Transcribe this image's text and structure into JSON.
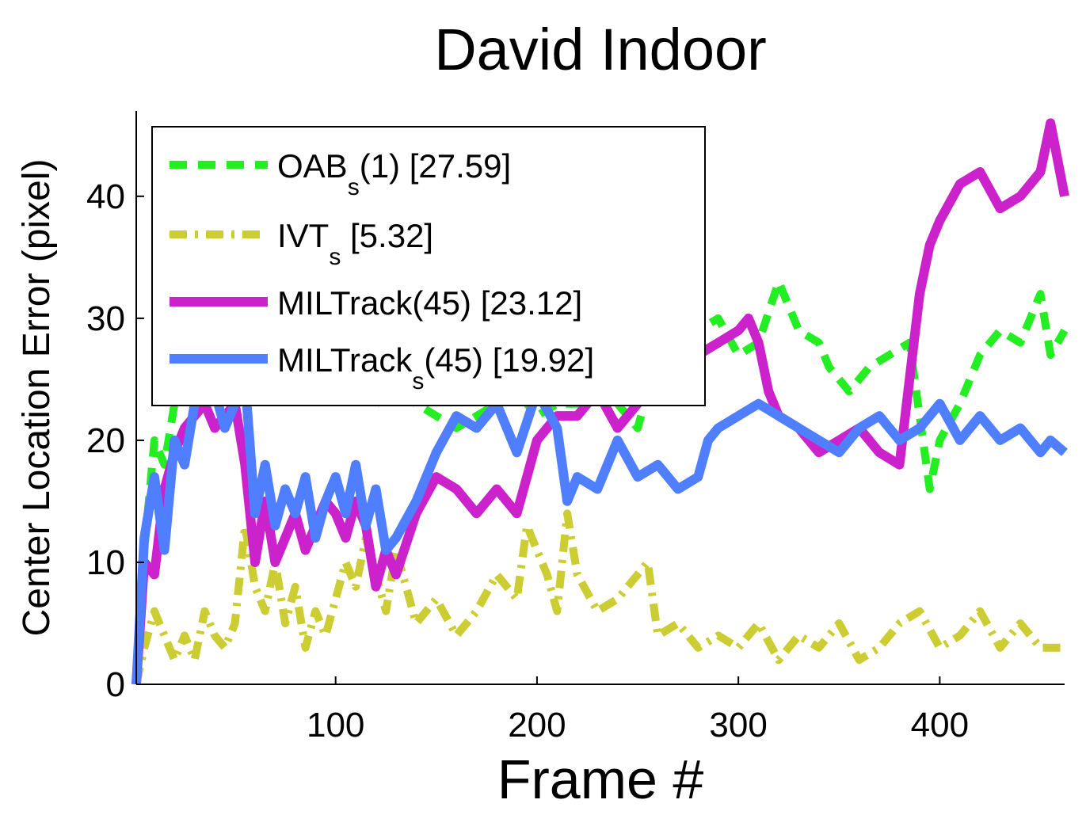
{
  "chart_data": {
    "type": "line",
    "title": "David Indoor",
    "xlabel": "Frame #",
    "ylabel": "Center Location Error (pixel)",
    "xlim": [
      1,
      462
    ],
    "ylim": [
      0,
      47
    ],
    "xticks": [
      100,
      200,
      300,
      400
    ],
    "yticks": [
      0,
      10,
      20,
      30,
      40
    ],
    "grid": false,
    "legend_position": "top-left",
    "series": [
      {
        "name": "OAB(1) [27.59]",
        "label_main": "OAB",
        "label_sub": "s",
        "label_rest": "(1) [27.59]",
        "color": "#22ee22",
        "style": "dashed",
        "x": [
          1,
          5,
          10,
          15,
          20,
          25,
          30,
          35,
          40,
          45,
          50,
          55,
          60,
          65,
          70,
          75,
          80,
          85,
          90,
          95,
          100,
          110,
          120,
          130,
          140,
          150,
          160,
          170,
          180,
          190,
          200,
          210,
          220,
          230,
          240,
          250,
          260,
          270,
          280,
          290,
          300,
          310,
          320,
          330,
          340,
          345,
          355,
          365,
          375,
          385,
          395,
          400,
          410,
          420,
          430,
          440,
          450,
          455,
          462
        ],
        "y": [
          0,
          11,
          20,
          18,
          23,
          25,
          26,
          25,
          27,
          26,
          28,
          27,
          24,
          27,
          28,
          29,
          27,
          28,
          26,
          27,
          25,
          24,
          23,
          24,
          23,
          22,
          21,
          22,
          23,
          24,
          22,
          23,
          23,
          24,
          23,
          21,
          27,
          28,
          29,
          30,
          27,
          28,
          33,
          29,
          28,
          26,
          24,
          26,
          27,
          28,
          16,
          20,
          23,
          27,
          29,
          28,
          32,
          27,
          29
        ]
      },
      {
        "name": "IVT [5.32]",
        "label_main": "IVT",
        "label_sub": "s",
        "label_rest": " [5.32]",
        "color": "#cccc33",
        "style": "dashdot",
        "x": [
          1,
          5,
          10,
          15,
          20,
          25,
          30,
          35,
          40,
          45,
          50,
          55,
          60,
          65,
          70,
          75,
          80,
          85,
          90,
          95,
          100,
          105,
          110,
          115,
          120,
          125,
          130,
          140,
          150,
          160,
          170,
          180,
          190,
          195,
          200,
          205,
          210,
          215,
          220,
          230,
          240,
          250,
          255,
          260,
          270,
          280,
          290,
          300,
          310,
          320,
          330,
          340,
          350,
          360,
          370,
          380,
          390,
          400,
          410,
          420,
          430,
          440,
          450,
          462
        ],
        "y": [
          0,
          3,
          6,
          4,
          2,
          4,
          2,
          6,
          4,
          3,
          5,
          13,
          8,
          6,
          10,
          5,
          8,
          3,
          6,
          4,
          7,
          10,
          8,
          12,
          9,
          6,
          11,
          5,
          7,
          4,
          6,
          9,
          7,
          13,
          11,
          9,
          6,
          14,
          9,
          6,
          7,
          9,
          10,
          4,
          5,
          3,
          4,
          3,
          5,
          2,
          4,
          3,
          5,
          2,
          3,
          5,
          6,
          3,
          4,
          6,
          3,
          5,
          3,
          3
        ]
      },
      {
        "name": "MILTrack(45) [23.12]",
        "label_main": "MILTrack(45) [23.12]",
        "label_sub": "",
        "label_rest": "",
        "color": "#cc22cc",
        "style": "solid",
        "x": [
          1,
          5,
          10,
          15,
          20,
          25,
          30,
          35,
          40,
          45,
          50,
          55,
          60,
          65,
          70,
          75,
          80,
          85,
          90,
          95,
          100,
          105,
          110,
          115,
          120,
          125,
          130,
          140,
          150,
          160,
          170,
          180,
          190,
          200,
          210,
          220,
          230,
          240,
          250,
          260,
          270,
          280,
          290,
          300,
          305,
          310,
          315,
          320,
          330,
          340,
          350,
          360,
          370,
          380,
          385,
          390,
          395,
          400,
          410,
          420,
          430,
          440,
          450,
          455,
          462
        ],
        "y": [
          0,
          10,
          9,
          16,
          19,
          21,
          22,
          23,
          21,
          22,
          23,
          18,
          10,
          15,
          10,
          12,
          14,
          11,
          13,
          15,
          14,
          12,
          15,
          13,
          8,
          11,
          9,
          14,
          17,
          16,
          14,
          16,
          14,
          20,
          22,
          22,
          24,
          21,
          23,
          25,
          26,
          27,
          28,
          29,
          30,
          28,
          24,
          22,
          21,
          19,
          20,
          21,
          19,
          18,
          25,
          32,
          36,
          38,
          41,
          42,
          39,
          40,
          42,
          46,
          40
        ]
      },
      {
        "name": "MILTrack(45) [19.92]",
        "label_main": "MILTrack",
        "label_sub": "s",
        "label_rest": "(45) [19.92]",
        "color": "#4f7fff",
        "style": "solid",
        "x": [
          1,
          5,
          10,
          15,
          20,
          25,
          30,
          35,
          40,
          45,
          50,
          55,
          60,
          65,
          70,
          75,
          80,
          85,
          90,
          95,
          100,
          105,
          110,
          115,
          120,
          125,
          130,
          140,
          150,
          160,
          170,
          180,
          190,
          200,
          210,
          215,
          220,
          230,
          240,
          250,
          260,
          270,
          280,
          285,
          290,
          300,
          310,
          320,
          330,
          340,
          350,
          360,
          370,
          380,
          390,
          400,
          410,
          420,
          430,
          440,
          450,
          455,
          462
        ],
        "y": [
          0,
          12,
          17,
          11,
          20,
          18,
          23,
          26,
          24,
          21,
          23,
          25,
          14,
          18,
          13,
          16,
          14,
          17,
          12,
          15,
          17,
          14,
          18,
          13,
          16,
          11,
          12,
          15,
          19,
          22,
          21,
          23,
          19,
          24,
          21,
          15,
          17,
          16,
          20,
          17,
          18,
          16,
          17,
          20,
          21,
          22,
          23,
          22,
          21,
          20,
          19,
          21,
          22,
          20,
          21,
          23,
          20,
          22,
          20,
          21,
          19,
          20,
          19
        ]
      }
    ]
  }
}
